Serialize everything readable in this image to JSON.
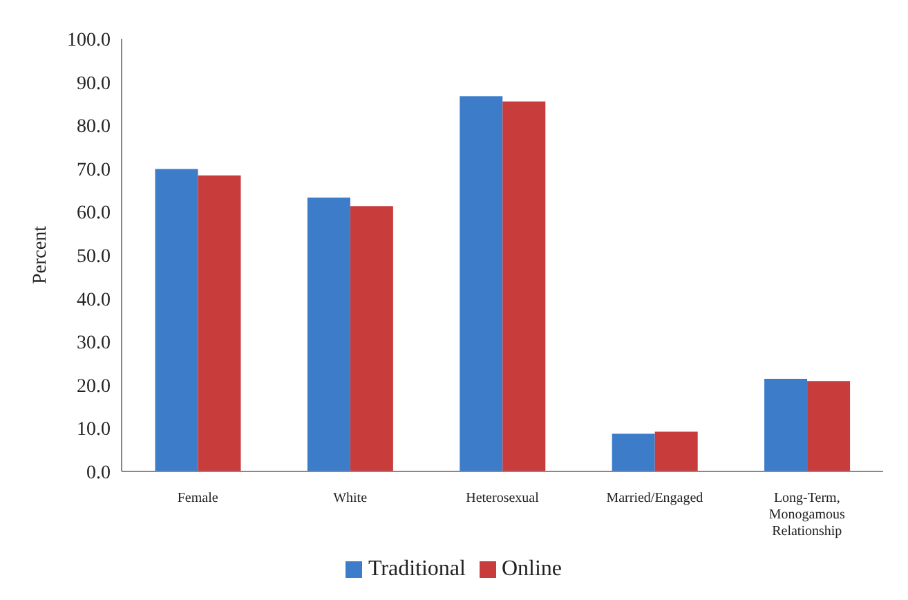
{
  "chart_data": {
    "type": "bar",
    "ylabel": "Percent",
    "categories": [
      "Female",
      "White",
      "Heterosexual",
      "Married/Engaged",
      "Long-Term, Monogamous Relationship"
    ],
    "series": [
      {
        "name": "Traditional",
        "color": "#3d7cc9",
        "values": [
          69.9,
          63.3,
          86.7,
          8.7,
          21.4
        ]
      },
      {
        "name": "Online",
        "color": "#c93c3c",
        "values": [
          68.4,
          61.3,
          85.5,
          9.2,
          20.9
        ]
      }
    ],
    "ylim": [
      0,
      100
    ],
    "yticks": [
      {
        "value": 0,
        "label": "0.0"
      },
      {
        "value": 10,
        "label": "10.0"
      },
      {
        "value": 20,
        "label": "20.0"
      },
      {
        "value": 30,
        "label": "30.0"
      },
      {
        "value": 40,
        "label": "40.0"
      },
      {
        "value": 50,
        "label": "50.0"
      },
      {
        "value": 60,
        "label": "60.0"
      },
      {
        "value": 70,
        "label": "70.0"
      },
      {
        "value": 80,
        "label": "80.0"
      },
      {
        "value": 90,
        "label": "90.0"
      },
      {
        "value": 100,
        "label": "100.0"
      }
    ],
    "grid": false,
    "legend": "bottom"
  }
}
